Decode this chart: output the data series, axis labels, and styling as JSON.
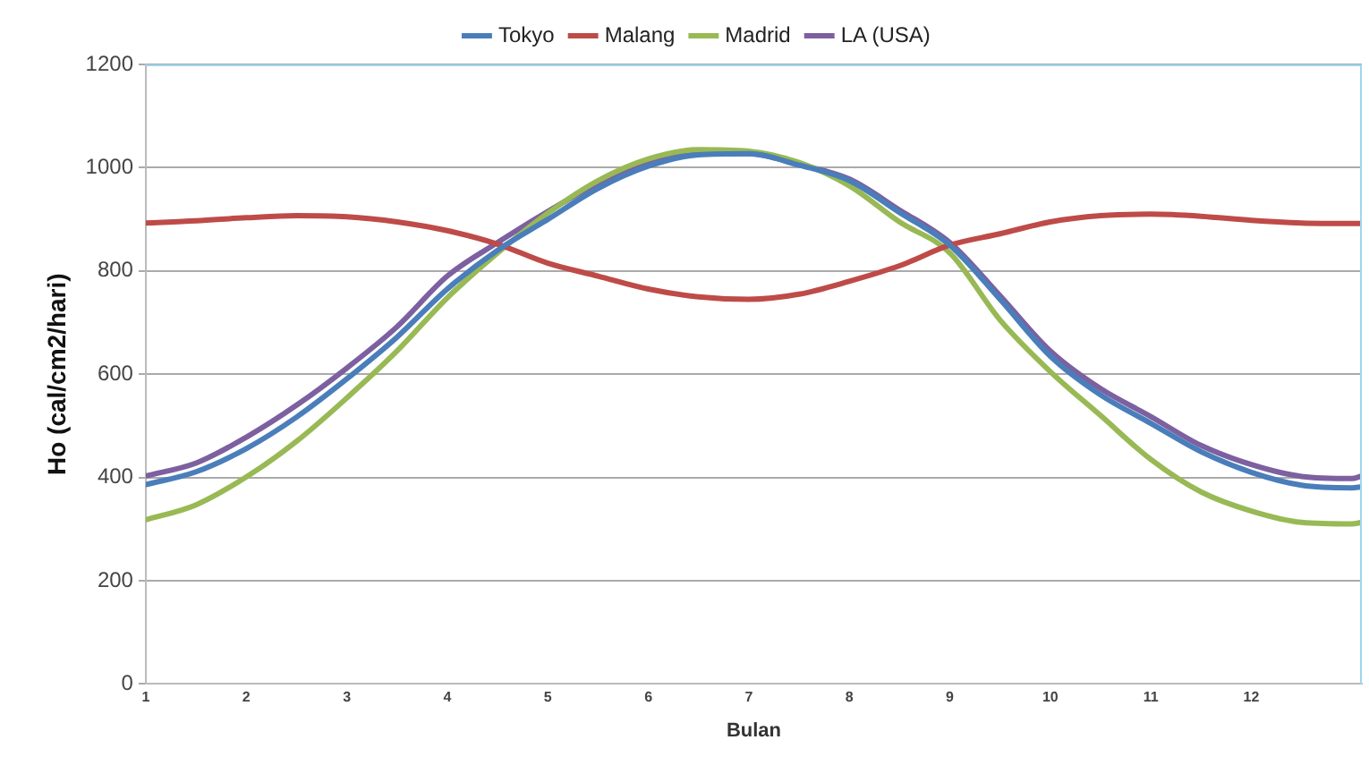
{
  "chart_data": {
    "type": "line",
    "xlabel": "Bulan",
    "ylabel": "Ho (cal/cm2/hari)",
    "x": [
      1,
      1.5,
      2,
      2.5,
      3,
      3.5,
      4,
      4.5,
      5,
      5.5,
      6,
      6.5,
      7,
      7.5,
      8,
      8.5,
      9,
      9.5,
      10,
      10.5,
      11,
      11.5,
      12,
      12.5,
      13,
      13.1
    ],
    "series": [
      {
        "name": "Tokyo",
        "color": "#4a7ebb",
        "values": [
          386,
          411,
          456,
          517,
          591,
          672,
          765,
          840,
          900,
          960,
          1003,
          1025,
          1027,
          1005,
          975,
          913,
          850,
          745,
          635,
          560,
          505,
          450,
          410,
          385,
          380,
          382
        ]
      },
      {
        "name": "Malang",
        "color": "#be4b48",
        "values": [
          893,
          897,
          903,
          907,
          905,
          895,
          878,
          852,
          815,
          790,
          765,
          750,
          745,
          755,
          780,
          810,
          850,
          872,
          895,
          907,
          910,
          906,
          898,
          893,
          892,
          892
        ]
      },
      {
        "name": "Madrid",
        "color": "#98b954",
        "values": [
          318,
          347,
          401,
          470,
          554,
          645,
          748,
          835,
          912,
          975,
          1017,
          1035,
          1032,
          1010,
          965,
          895,
          835,
          705,
          605,
          520,
          435,
          372,
          335,
          313,
          310,
          313
        ]
      },
      {
        "name": "LA (USA)",
        "color": "#7d60a0",
        "values": [
          403,
          428,
          478,
          540,
          612,
          692,
          790,
          855,
          915,
          970,
          1008,
          1027,
          1027,
          1006,
          978,
          918,
          855,
          752,
          645,
          572,
          518,
          462,
          425,
          402,
          398,
          403
        ]
      }
    ],
    "xlim": [
      1,
      13.1
    ],
    "xticks": [
      1,
      2,
      3,
      4,
      5,
      6,
      7,
      8,
      9,
      10,
      11,
      12
    ],
    "ylim": [
      0,
      1200
    ],
    "yticks": [
      0,
      200,
      400,
      600,
      800,
      1000,
      1200
    ],
    "grid": "y",
    "legend": "top",
    "marker": "none",
    "line_style": "solid"
  }
}
